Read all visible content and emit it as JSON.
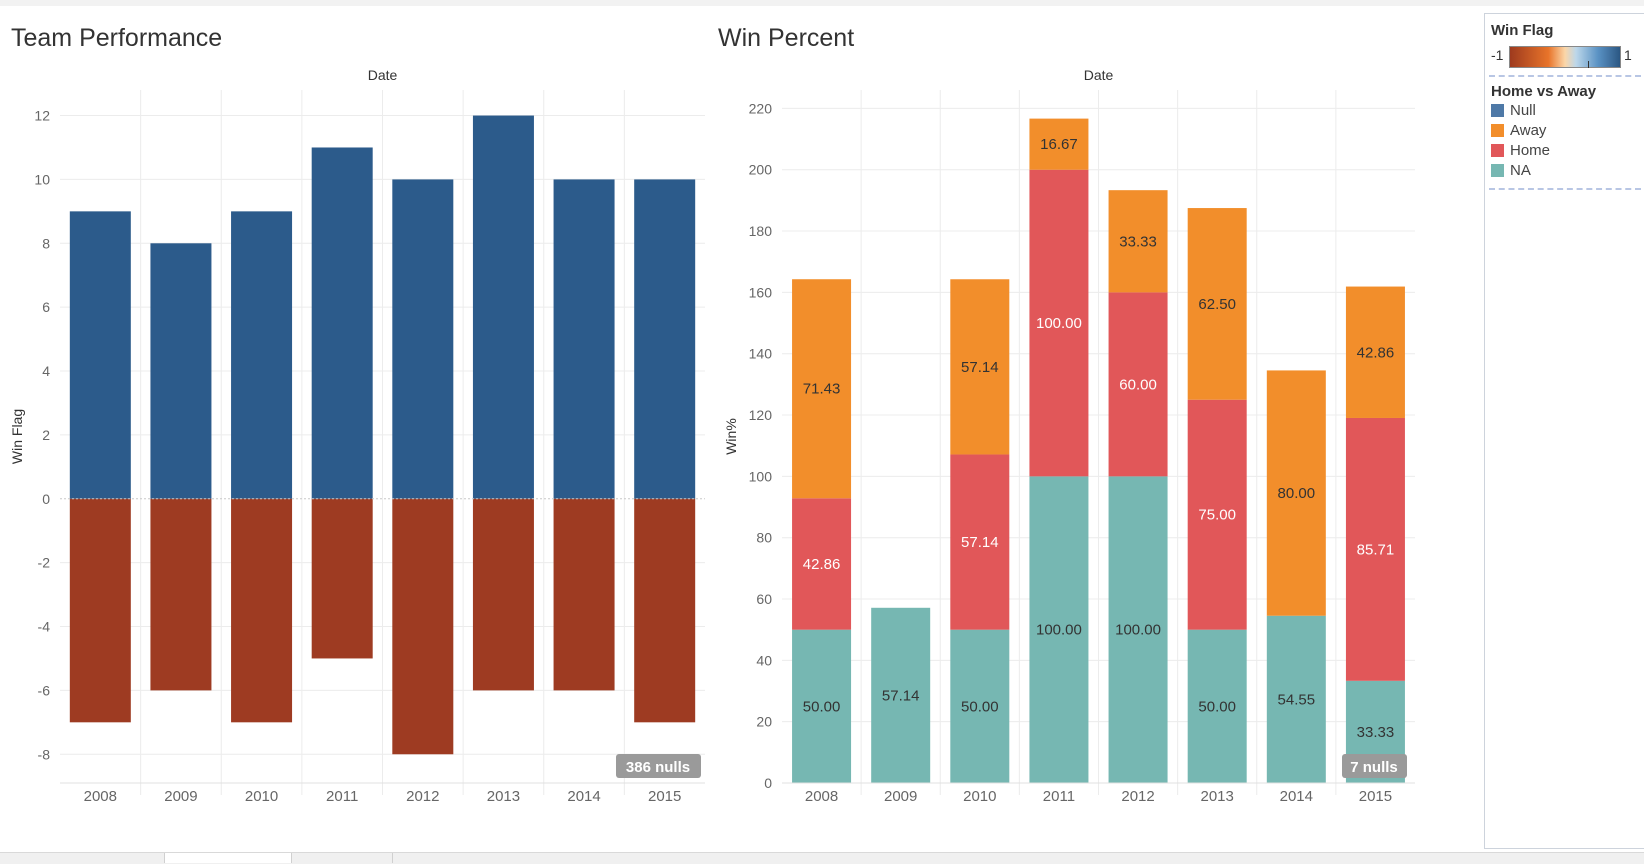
{
  "colors": {
    "win_positive": "#2c5b8b",
    "win_negative": "#9e3b22",
    "home": "#e15759",
    "away": "#f28e2b",
    "null": "#4e79a7",
    "na": "#76b7b2",
    "label_light": "#ffffff",
    "label_dark": "#333333"
  },
  "chart_data": [
    {
      "type": "bar",
      "title": "Team Performance",
      "top_label": "Date",
      "ylabel": "Win Flag",
      "categories": [
        "2008",
        "2009",
        "2010",
        "2011",
        "2012",
        "2013",
        "2014",
        "2015"
      ],
      "yticks": [
        "12",
        "10",
        "8",
        "6",
        "4",
        "2",
        "0",
        "-2",
        "-4",
        "-6",
        "-8"
      ],
      "ylim": [
        -8.9,
        12.8
      ],
      "series": [
        {
          "values": [
            9,
            8,
            9,
            11,
            10,
            12,
            10,
            10
          ]
        },
        {
          "values": [
            -7,
            -6,
            -7,
            -5,
            -8,
            -6,
            -6,
            -7
          ]
        }
      ],
      "null_badge": "386 nulls"
    },
    {
      "type": "bar",
      "stacked": true,
      "title": "Win Percent",
      "top_label": "Date",
      "ylabel": "Win%",
      "categories": [
        "2008",
        "2009",
        "2010",
        "2011",
        "2012",
        "2013",
        "2014",
        "2015"
      ],
      "yticks": [
        "220",
        "200",
        "180",
        "160",
        "140",
        "120",
        "100",
        "80",
        "60",
        "40",
        "20",
        "0"
      ],
      "ylim": [
        0,
        226
      ],
      "series": [
        {
          "name": "NA",
          "values": [
            50.0,
            57.14,
            50.0,
            100.0,
            100.0,
            50.0,
            54.55,
            33.33
          ],
          "labels": [
            "50.00",
            "57.14",
            "50.00",
            "100.00",
            "100.00",
            "50.00",
            "54.55",
            "33.33"
          ]
        },
        {
          "name": "Home",
          "values": [
            42.86,
            0,
            57.14,
            100.0,
            60.0,
            75.0,
            0,
            85.71
          ],
          "labels": [
            "42.86",
            "",
            "57.14",
            "100.00",
            "60.00",
            "75.00",
            "",
            "85.71"
          ]
        },
        {
          "name": "Away",
          "values": [
            71.43,
            0,
            57.14,
            16.67,
            33.33,
            62.5,
            80.0,
            42.86
          ],
          "labels": [
            "71.43",
            "",
            "57.14",
            "16.67",
            "33.33",
            "62.50",
            "80.00",
            "42.86"
          ]
        }
      ],
      "null_badge": "7 nulls"
    }
  ],
  "legend": {
    "color_title": "Win Flag",
    "color_min": "-1",
    "color_max": "1",
    "category_title": "Home vs Away",
    "items": [
      {
        "label": "Null",
        "color_key": "null"
      },
      {
        "label": "Away",
        "color_key": "away"
      },
      {
        "label": "Home",
        "color_key": "home"
      },
      {
        "label": "NA",
        "color_key": "na"
      }
    ]
  }
}
